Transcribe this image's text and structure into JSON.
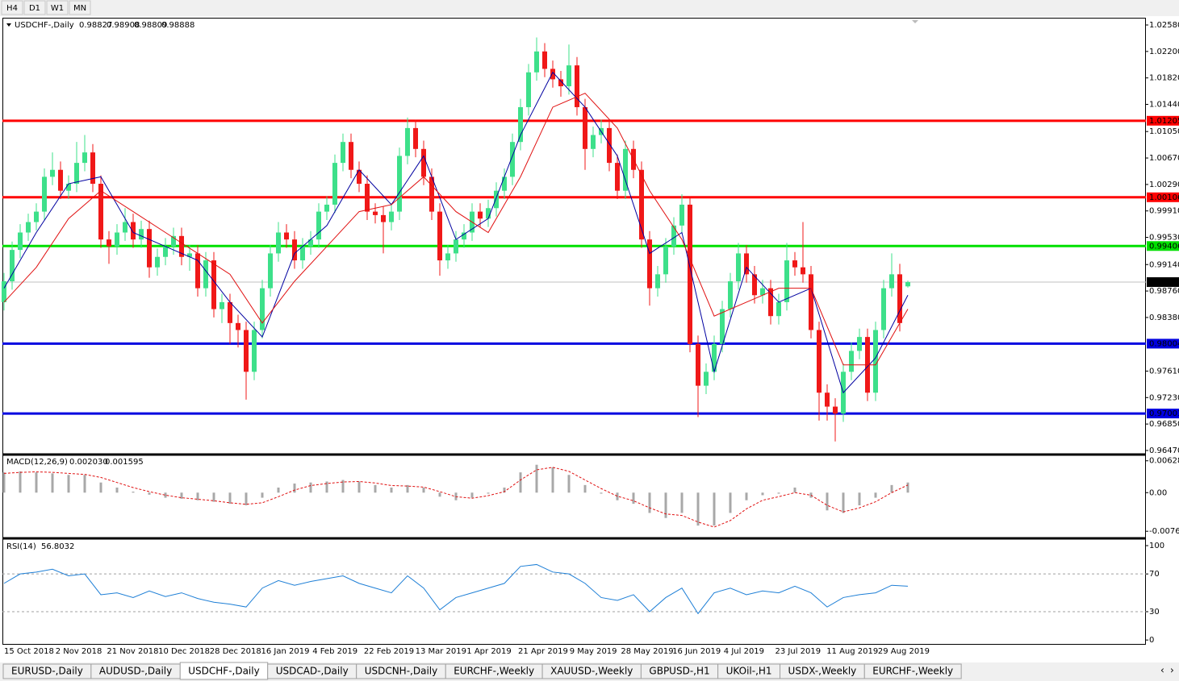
{
  "toolbar": [
    "H4",
    "D1",
    "W1",
    "MN"
  ],
  "tabs": [
    "EURUSD-,Daily",
    "AUDUSD-,Daily",
    "USDCHF-,Daily",
    "USDCAD-,Daily",
    "USDCNH-,Daily",
    "EURCHF-,Weekly",
    "XAUUSD-,Weekly",
    "GBPUSD-,H1",
    "UKOil-,H1",
    "USDX-,Weekly",
    "EURCHF-,Weekly"
  ],
  "active_tab": 2,
  "chart_data": [
    {
      "type": "candlestick",
      "title": "USDCHF-,Daily",
      "ylim": [
        0.96435,
        1.02661
      ],
      "yticks": [
        {
          "value": 1.0258,
          "label": "1.02580"
        },
        {
          "value": 1.022,
          "label": "1.02200"
        },
        {
          "value": 1.0182,
          "label": "1.01820"
        },
        {
          "value": 1.0144,
          "label": "1.01440"
        },
        {
          "value": 1.0105,
          "label": "1.01050"
        },
        {
          "value": 1.0067,
          "label": "1.00670"
        },
        {
          "value": 1.0029,
          "label": "1.00290"
        },
        {
          "value": 0.9991,
          "label": "0.99910"
        },
        {
          "value": 0.9953,
          "label": "0.99530"
        },
        {
          "value": 0.9914,
          "label": "0.99140"
        },
        {
          "value": 0.9876,
          "label": "0.98760"
        },
        {
          "value": 0.9838,
          "label": "0.98380"
        },
        {
          "value": 0.9761,
          "label": "0.97610"
        },
        {
          "value": 0.9723,
          "label": "0.97230"
        },
        {
          "value": 0.9685,
          "label": "0.96850"
        },
        {
          "value": 0.9647,
          "label": "0.96470"
        }
      ],
      "x_labels": [
        "15 Oct 2018",
        "2 Nov 2018",
        "21 Nov 2018",
        "10 Dec 2018",
        "28 Dec 2018",
        "16 Jan 2019",
        "4 Feb 2019",
        "22 Feb 2019",
        "13 Mar 2019",
        "1 Apr 2019",
        "21 Apr 2019",
        "9 May 2019",
        "28 May 2019",
        "16 Jun 2019",
        "4 Jul 2019",
        "23 Jul 2019",
        "11 Aug 2019",
        "29 Aug 2019"
      ],
      "up_color": "#3de08a",
      "down_color": "#f01818",
      "open": [
        0.986,
        0.989,
        0.9935,
        0.996,
        0.9975,
        0.999,
        1.004,
        1.005,
        1.002,
        1.003,
        1.006,
        1.0075,
        1.003,
        0.995,
        0.994,
        0.996,
        0.9975,
        0.995,
        0.9965,
        0.991,
        0.9925,
        0.994,
        0.9955,
        0.9925,
        0.993,
        0.988,
        0.992,
        0.985,
        0.986,
        0.983,
        0.982,
        0.976,
        0.982,
        0.988,
        0.993,
        0.996,
        0.995,
        0.992,
        0.994,
        0.995,
        0.999,
        1.0,
        1.006,
        1.009,
        1.005,
        1.003,
        0.999,
        0.9985,
        0.9975,
        0.999,
        1.007,
        1.011,
        1.008,
        1.004,
        0.999,
        0.992,
        0.993,
        0.995,
        0.996,
        0.999,
        0.998,
        0.9995,
        1.002,
        1.004,
        1.009,
        1.014,
        1.019,
        1.022,
        1.0195,
        1.018,
        1.017,
        1.02,
        1.014,
        1.008,
        1.01,
        1.011,
        1.006,
        1.002,
        1.008,
        1.005,
        0.995,
        0.988,
        0.99,
        0.994,
        0.997,
        1.0,
        0.98,
        0.974,
        0.976,
        0.98,
        0.985,
        0.989,
        0.993,
        0.99,
        0.987,
        0.988,
        0.984,
        0.986,
        0.992,
        0.991,
        0.99,
        0.982,
        0.973,
        0.971,
        0.97,
        0.976,
        0.979,
        0.981,
        0.973,
        0.982,
        0.988,
        0.99,
        0.98827
      ],
      "high": [
        0.9902,
        0.9947,
        0.9972,
        0.9987,
        1.0002,
        1.0052,
        1.0075,
        1.0062,
        1.0042,
        1.009,
        1.01,
        1.0087,
        1.0042,
        0.9962,
        0.9972,
        0.9995,
        0.9987,
        0.9977,
        0.9977,
        0.9937,
        0.9952,
        0.9967,
        0.9967,
        0.9942,
        0.9942,
        0.9932,
        0.9932,
        0.9872,
        0.9872,
        0.9842,
        0.9832,
        0.9832,
        0.9892,
        0.9942,
        0.9975,
        0.9972,
        0.9962,
        0.9952,
        0.9962,
        1.0002,
        1.0012,
        1.0072,
        1.0102,
        1.0102,
        1.0062,
        1.0042,
        1.0002,
        0.9997,
        1.0002,
        1.0082,
        1.0125,
        1.0122,
        1.0092,
        1.0052,
        1.0002,
        0.9942,
        0.9962,
        0.9972,
        1.0002,
        1.0002,
        1.0007,
        1.0032,
        1.0052,
        1.0102,
        1.0152,
        1.0202,
        1.024,
        1.0232,
        1.0207,
        1.0192,
        1.023,
        1.0212,
        1.0152,
        1.0112,
        1.0122,
        1.0122,
        1.0072,
        1.0092,
        1.0092,
        1.0062,
        0.9962,
        0.9912,
        0.9952,
        0.9982,
        1.0015,
        1.0012,
        0.9812,
        0.9772,
        0.9812,
        0.9862,
        0.9902,
        0.9945,
        0.9942,
        0.9912,
        0.9892,
        0.9892,
        0.9872,
        0.9945,
        0.9932,
        0.9975,
        0.9912,
        0.9832,
        0.9742,
        0.9722,
        0.9772,
        0.9802,
        0.9822,
        0.9822,
        0.9832,
        0.9892,
        0.993,
        0.9915,
        0.98908
      ],
      "low": [
        0.9848,
        0.9878,
        0.9923,
        0.9948,
        0.9963,
        0.9978,
        1.0028,
        1.0008,
        1.0008,
        1.0018,
        1.0048,
        1.0018,
        0.9938,
        0.9915,
        0.9928,
        0.9948,
        0.9938,
        0.9938,
        0.9895,
        0.9898,
        0.9913,
        0.9928,
        0.9913,
        0.9905,
        0.9868,
        0.9868,
        0.9838,
        0.983,
        0.98,
        0.9795,
        0.972,
        0.9748,
        0.9808,
        0.9868,
        0.9918,
        0.9938,
        0.9908,
        0.9908,
        0.9928,
        0.9938,
        0.9978,
        0.9988,
        1.0048,
        1.0038,
        1.0018,
        0.9978,
        0.9973,
        0.993,
        0.9963,
        0.9978,
        1.0058,
        1.0068,
        1.0028,
        0.9978,
        0.9898,
        0.9908,
        0.9918,
        0.9938,
        0.9948,
        0.9968,
        0.9968,
        0.9983,
        1.0008,
        1.0028,
        1.0078,
        1.0128,
        1.0178,
        1.0183,
        1.0168,
        1.0155,
        1.0158,
        1.0128,
        1.005,
        1.0068,
        1.0088,
        1.0048,
        1.0008,
        1.0008,
        1.0038,
        0.9938,
        0.9855,
        0.9868,
        0.9888,
        0.9928,
        0.9958,
        0.9788,
        0.9695,
        0.9728,
        0.9748,
        0.9788,
        0.9838,
        0.9878,
        0.9888,
        0.9858,
        0.9858,
        0.9828,
        0.9828,
        0.9848,
        0.9898,
        0.9888,
        0.9808,
        0.969,
        0.969,
        0.966,
        0.9688,
        0.9748,
        0.9778,
        0.9718,
        0.9718,
        0.9808,
        0.9868,
        0.9818,
        0.98809
      ],
      "close": [
        0.989,
        0.9935,
        0.996,
        0.9975,
        0.999,
        1.004,
        1.005,
        1.002,
        1.003,
        1.006,
        1.0075,
        1.003,
        0.995,
        0.994,
        0.996,
        0.9975,
        0.995,
        0.9965,
        0.991,
        0.9925,
        0.994,
        0.9955,
        0.9925,
        0.993,
        0.988,
        0.992,
        0.985,
        0.986,
        0.983,
        0.982,
        0.976,
        0.982,
        0.988,
        0.993,
        0.996,
        0.995,
        0.992,
        0.994,
        0.995,
        0.999,
        1.0,
        1.006,
        1.009,
        1.005,
        1.003,
        0.999,
        0.9985,
        0.9975,
        0.999,
        1.007,
        1.011,
        1.008,
        1.004,
        0.999,
        0.992,
        0.993,
        0.995,
        0.996,
        0.999,
        0.998,
        0.9995,
        1.002,
        1.004,
        1.009,
        1.014,
        1.019,
        1.022,
        1.0195,
        1.018,
        1.017,
        1.02,
        1.014,
        1.008,
        1.01,
        1.011,
        1.006,
        1.002,
        1.008,
        1.005,
        0.995,
        0.988,
        0.99,
        0.994,
        0.997,
        1.0,
        0.98,
        0.974,
        0.976,
        0.98,
        0.985,
        0.989,
        0.993,
        0.99,
        0.987,
        0.988,
        0.984,
        0.986,
        0.992,
        0.991,
        0.99,
        0.982,
        0.973,
        0.971,
        0.97,
        0.976,
        0.979,
        0.981,
        0.973,
        0.982,
        0.988,
        0.99,
        0.983,
        0.98888
      ],
      "ma_lines": [
        {
          "color": "#0000a0",
          "values": [
            0.988,
            0.996,
            1.003,
            1.004,
            0.996,
            0.994,
            0.992,
            0.986,
            0.981,
            0.993,
            0.997,
            1.005,
            1.0,
            1.007,
            0.995,
            0.998,
            1.01,
            1.019,
            1.014,
            1.007,
            0.993,
            0.996,
            0.976,
            0.991,
            0.986,
            0.988,
            0.973,
            0.978,
            0.987
          ]
        },
        {
          "color": "#e01010",
          "values": [
            0.986,
            0.991,
            0.998,
            1.002,
            0.999,
            0.996,
            0.993,
            0.99,
            0.983,
            0.989,
            0.994,
            0.999,
            1.0,
            1.004,
            0.999,
            0.996,
            1.004,
            1.014,
            1.016,
            1.011,
            1.002,
            0.995,
            0.984,
            0.986,
            0.988,
            0.988,
            0.977,
            0.977,
            0.985
          ]
        }
      ],
      "levels": [
        {
          "value": 1.01205,
          "color": "#ff0000"
        },
        {
          "value": 1.00106,
          "color": "#ff0000"
        },
        {
          "value": 0.99406,
          "color": "#00e000"
        },
        {
          "value": 0.98004,
          "color": "#0000e0"
        },
        {
          "value": 0.97001,
          "color": "#0000e0"
        }
      ]
    },
    {
      "type": "macd",
      "title": "MACD(12,26,9)",
      "readout": [
        {
          "value": 0.00203,
          "label": "0.002030"
        },
        0.001595
      ],
      "ylim": [
        -0.0087,
        0.0072
      ],
      "yticks": [
        0.006286,
        {
          "value": 0,
          "label": "0.00"
        },
        -0.00762
      ],
      "hist_color": "#a8a8a8",
      "signal_color": "#e01010",
      "histogram": [
        0.004,
        0.0042,
        0.004,
        0.0038,
        0.0035,
        0.0035,
        0.002,
        0.001,
        0.0002,
        -0.0004,
        -0.001,
        -0.0012,
        -0.0015,
        -0.0018,
        -0.0022,
        -0.0025,
        -0.001,
        0.001,
        0.0018,
        0.002,
        0.0022,
        0.0025,
        0.0022,
        0.0015,
        0.001,
        0.0015,
        0.001,
        -0.0008,
        -0.0015,
        -0.001,
        -0.0002,
        0.001,
        0.004,
        0.0055,
        0.005,
        0.0035,
        0.0015,
        -0.0002,
        -0.0015,
        -0.0022,
        -0.004,
        -0.005,
        -0.004,
        -0.0065,
        -0.0065,
        -0.004,
        -0.0015,
        -0.0005,
        -0.0002,
        0.001,
        -0.001,
        -0.0035,
        -0.004,
        -0.0025,
        -0.001,
        0.0015,
        0.002
      ],
      "signal": [
        0.0038,
        0.004,
        0.0041,
        0.004,
        0.0038,
        0.0036,
        0.003,
        0.002,
        0.001,
        0.0002,
        -0.0005,
        -0.001,
        -0.0013,
        -0.0016,
        -0.002,
        -0.0023,
        -0.002,
        -0.0008,
        0.0005,
        0.0014,
        0.0018,
        0.0021,
        0.0022,
        0.0019,
        0.0014,
        0.0013,
        0.0011,
        0.0002,
        -0.0008,
        -0.0011,
        -0.0006,
        0.0002,
        0.0025,
        0.0045,
        0.005,
        0.0042,
        0.0025,
        0.0008,
        -0.0007,
        -0.0016,
        -0.003,
        -0.0042,
        -0.0045,
        -0.0058,
        -0.0068,
        -0.0055,
        -0.0032,
        -0.0015,
        -0.0008,
        0.0,
        -0.0005,
        -0.0025,
        -0.0038,
        -0.003,
        -0.0018,
        0.0,
        0.0015
      ]
    },
    {
      "type": "line",
      "title": "RSI(14)",
      "readout": 56.8032,
      "color": "#1e7fd6",
      "ylim": [
        -5,
        106
      ],
      "yticks": [
        100,
        70,
        30,
        0
      ],
      "levels": [
        70,
        30
      ],
      "values": [
        60,
        70,
        72,
        75,
        68,
        70,
        48,
        50,
        45,
        52,
        46,
        50,
        44,
        40,
        38,
        35,
        55,
        63,
        58,
        62,
        65,
        68,
        60,
        55,
        50,
        68,
        55,
        32,
        45,
        50,
        55,
        60,
        78,
        80,
        72,
        70,
        60,
        45,
        42,
        48,
        30,
        45,
        55,
        28,
        50,
        55,
        48,
        52,
        50,
        57,
        50,
        35,
        45,
        48,
        50,
        58,
        57
      ]
    }
  ]
}
